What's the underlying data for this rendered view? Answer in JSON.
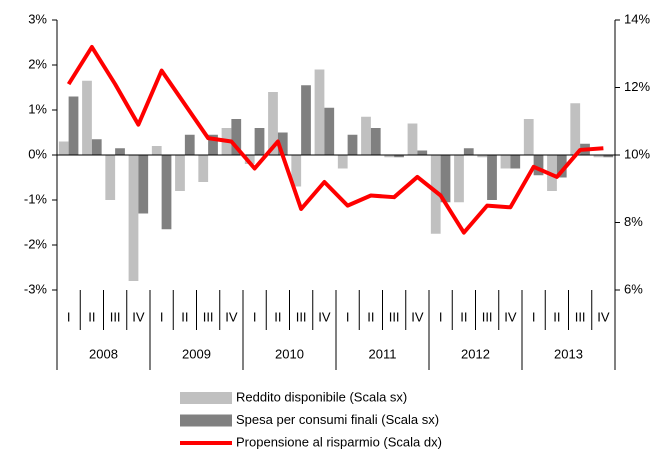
{
  "chart_data": {
    "type": "bar",
    "categories": [
      "I",
      "II",
      "III",
      "IV",
      "I",
      "II",
      "III",
      "IV",
      "I",
      "II",
      "III",
      "IV",
      "I",
      "II",
      "III",
      "IV",
      "I",
      "II",
      "III",
      "IV",
      "I",
      "II",
      "III",
      "IV"
    ],
    "years": [
      "2008",
      "2009",
      "2010",
      "2011",
      "2012",
      "2013"
    ],
    "series": [
      {
        "name": "Reddito disponibile (Scala sx)",
        "type": "bar",
        "color": "#c0c0c0",
        "values": [
          0.3,
          1.65,
          -1.0,
          -2.8,
          0.2,
          -0.8,
          -0.6,
          0.6,
          -0.2,
          1.4,
          -0.7,
          1.9,
          -0.3,
          0.85,
          -0.05,
          0.7,
          -1.75,
          -1.05,
          -0.05,
          -0.3,
          0.8,
          -0.8,
          1.15,
          -0.05
        ]
      },
      {
        "name": "Spesa per consumi finali (Scala sx)",
        "type": "bar",
        "color": "#808080",
        "values": [
          1.3,
          0.35,
          0.15,
          -1.3,
          -1.65,
          0.45,
          0.45,
          0.8,
          0.6,
          0.5,
          1.55,
          1.05,
          0.45,
          0.6,
          -0.05,
          0.1,
          -1.05,
          0.15,
          -1.0,
          -0.3,
          -0.45,
          -0.5,
          0.25,
          -0.05
        ]
      },
      {
        "name": "Propensione al risparmio (Scala dx)",
        "type": "line",
        "axis": "y2",
        "color": "#ff0000",
        "values": [
          12.1,
          13.2,
          12.1,
          10.9,
          12.5,
          11.5,
          10.5,
          10.4,
          9.6,
          10.4,
          8.4,
          9.2,
          8.5,
          8.8,
          8.75,
          9.35,
          8.8,
          7.7,
          8.5,
          8.45,
          9.65,
          9.35,
          10.15,
          10.2
        ]
      }
    ],
    "ylim": [
      -3,
      3
    ],
    "yticks": [
      {
        "value": -3,
        "label": "-3%"
      },
      {
        "value": -2,
        "label": "-2%"
      },
      {
        "value": -1,
        "label": "-1%"
      },
      {
        "value": 0,
        "label": "0%"
      },
      {
        "value": 1,
        "label": "1%"
      },
      {
        "value": 2,
        "label": "2%"
      },
      {
        "value": 3,
        "label": "3%"
      }
    ],
    "y2lim": [
      6,
      14
    ],
    "y2ticks": [
      {
        "value": 6,
        "label": "6%"
      },
      {
        "value": 8,
        "label": "8%"
      },
      {
        "value": 10,
        "label": "10%"
      },
      {
        "value": 12,
        "label": "12%"
      },
      {
        "value": 14,
        "label": "14%"
      }
    ],
    "grid": false
  }
}
